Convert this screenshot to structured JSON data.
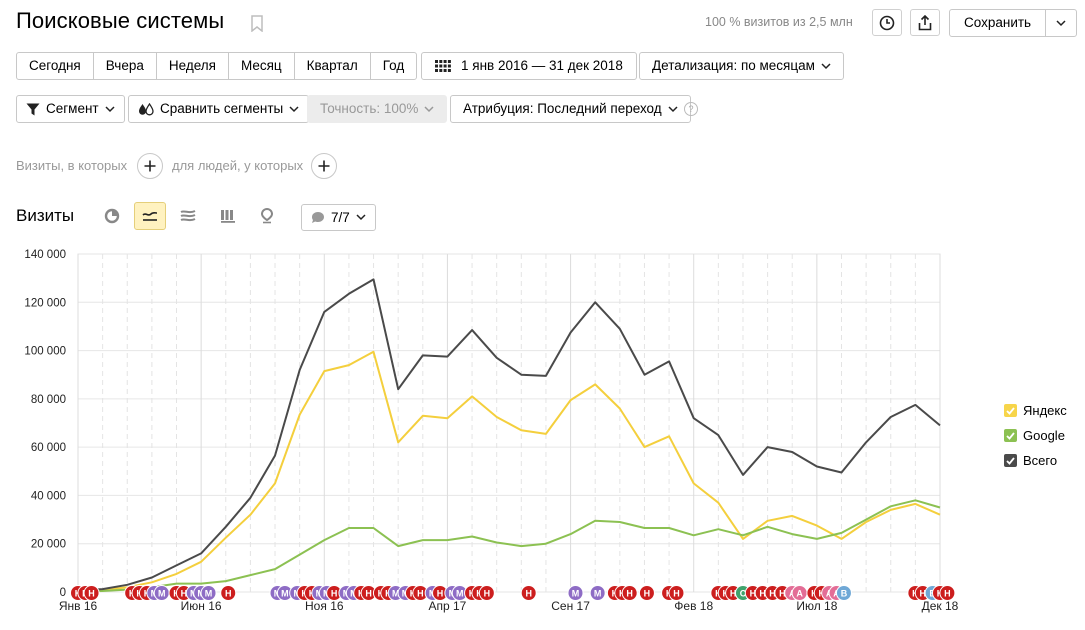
{
  "header": {
    "title": "Поисковые системы",
    "visits_share": "100 % визитов из 2,5 млн",
    "save_label": "Сохранить"
  },
  "period_buttons": [
    "Сегодня",
    "Вчера",
    "Неделя",
    "Месяц",
    "Квартал",
    "Год"
  ],
  "date_range": "1 янв 2016 — 31 дек 2018",
  "detail": "Детализация: по месяцам",
  "segment_label": "Сегмент",
  "compare_label": "Сравнить сегменты",
  "accuracy_label": "Точность: 100%",
  "attribution_label": "Атрибуция: Последний переход",
  "help_glyph": "?",
  "filter": {
    "visits_label": "Визиты, в которых",
    "people_label": "для людей, у которых"
  },
  "section": {
    "title": "Визиты",
    "annotations_count": "7/7"
  },
  "legend": [
    {
      "name": "Яндекс",
      "color": "#f7d54a"
    },
    {
      "name": "Google",
      "color": "#8cc152"
    },
    {
      "name": "Всего",
      "color": "#4a4a4a"
    }
  ],
  "chart_data": {
    "type": "line",
    "ylim": [
      0,
      140000
    ],
    "y_ticks": [
      {
        "value": 0,
        "label": "0"
      },
      {
        "value": 20000,
        "label": "20 000"
      },
      {
        "value": 40000,
        "label": "40 000"
      },
      {
        "value": 60000,
        "label": "60 000"
      },
      {
        "value": 80000,
        "label": "80 000"
      },
      {
        "value": 100000,
        "label": "100 000"
      },
      {
        "value": 120000,
        "label": "120 000"
      },
      {
        "value": 140000,
        "label": "140 000"
      }
    ],
    "x": [
      "2016-01",
      "2016-02",
      "2016-03",
      "2016-04",
      "2016-05",
      "2016-06",
      "2016-07",
      "2016-08",
      "2016-09",
      "2016-10",
      "2016-11",
      "2016-12",
      "2017-01",
      "2017-02",
      "2017-03",
      "2017-04",
      "2017-05",
      "2017-06",
      "2017-07",
      "2017-08",
      "2017-09",
      "2017-10",
      "2017-11",
      "2017-12",
      "2018-01",
      "2018-02",
      "2018-03",
      "2018-04",
      "2018-05",
      "2018-06",
      "2018-07",
      "2018-08",
      "2018-09",
      "2018-10",
      "2018-11",
      "2018-12"
    ],
    "x_labels": [
      {
        "index": 0,
        "label": "Янв 16"
      },
      {
        "index": 5,
        "label": "Июн 16"
      },
      {
        "index": 10,
        "label": "Ноя 16"
      },
      {
        "index": 15,
        "label": "Апр 17"
      },
      {
        "index": 20,
        "label": "Сен 17"
      },
      {
        "index": 25,
        "label": "Фев 18"
      },
      {
        "index": 30,
        "label": "Июл 18"
      },
      {
        "index": 35,
        "label": "Дек 18"
      }
    ],
    "series": [
      {
        "name": "Яндекс",
        "color": "#f4cf3d",
        "values": [
          500,
          800,
          2000,
          4000,
          7500,
          12500,
          22500,
          32000,
          45000,
          73500,
          91500,
          94000,
          99500,
          62000,
          73000,
          72000,
          81000,
          72500,
          67000,
          65500,
          79500,
          86000,
          76000,
          60000,
          64500,
          45000,
          37000,
          22000,
          29500,
          31500,
          27500,
          22000,
          29000,
          34000,
          36500,
          32000
        ]
      },
      {
        "name": "Google",
        "color": "#8cc152",
        "values": [
          200,
          400,
          1000,
          2000,
          3500,
          3500,
          4500,
          7000,
          9500,
          15500,
          21500,
          26500,
          26500,
          19000,
          21500,
          21500,
          23000,
          20500,
          19000,
          20000,
          24000,
          29500,
          29000,
          26500,
          26500,
          23500,
          26000,
          23500,
          27000,
          24000,
          22000,
          24500,
          30000,
          35500,
          38000,
          35000
        ]
      },
      {
        "name": "Всего",
        "color": "#4a4a4a",
        "values": [
          700,
          1200,
          3000,
          6000,
          11000,
          16000,
          27000,
          39000,
          56500,
          92000,
          116000,
          123500,
          129500,
          84000,
          98000,
          97500,
          108500,
          97000,
          90000,
          89500,
          107500,
          120000,
          109000,
          90000,
          95500,
          72000,
          65000,
          48500,
          60000,
          58000,
          52000,
          49500,
          62000,
          72500,
          77500,
          69000
        ]
      }
    ]
  },
  "annotations": [
    {
      "m": 0.0,
      "letter": "Н",
      "color": "#cc1e1e"
    },
    {
      "m": 0.3,
      "letter": "Н",
      "color": "#cc1e1e"
    },
    {
      "m": 0.55,
      "letter": "Н",
      "color": "#cc1e1e"
    },
    {
      "m": 2.2,
      "letter": "Н",
      "color": "#cc1e1e"
    },
    {
      "m": 2.5,
      "letter": "Н",
      "color": "#cc1e1e"
    },
    {
      "m": 2.8,
      "letter": "Н",
      "color": "#cc1e1e"
    },
    {
      "m": 3.1,
      "letter": "М",
      "color": "#8e6cc5"
    },
    {
      "m": 3.4,
      "letter": "М",
      "color": "#8e6cc5"
    },
    {
      "m": 4.0,
      "letter": "Н",
      "color": "#cc1e1e"
    },
    {
      "m": 4.3,
      "letter": "Н",
      "color": "#cc1e1e"
    },
    {
      "m": 4.7,
      "letter": "М",
      "color": "#8e6cc5"
    },
    {
      "m": 5.0,
      "letter": "М",
      "color": "#8e6cc5"
    },
    {
      "m": 5.3,
      "letter": "М",
      "color": "#8e6cc5"
    },
    {
      "m": 6.1,
      "letter": "Н",
      "color": "#cc1e1e"
    },
    {
      "m": 8.1,
      "letter": "М",
      "color": "#8e6cc5"
    },
    {
      "m": 8.4,
      "letter": "М",
      "color": "#8e6cc5"
    },
    {
      "m": 8.9,
      "letter": "М",
      "color": "#8e6cc5"
    },
    {
      "m": 9.2,
      "letter": "Н",
      "color": "#cc1e1e"
    },
    {
      "m": 9.5,
      "letter": "Н",
      "color": "#cc1e1e"
    },
    {
      "m": 9.8,
      "letter": "М",
      "color": "#8e6cc5"
    },
    {
      "m": 10.1,
      "letter": "М",
      "color": "#8e6cc5"
    },
    {
      "m": 10.4,
      "letter": "Н",
      "color": "#cc1e1e"
    },
    {
      "m": 10.9,
      "letter": "М",
      "color": "#8e6cc5"
    },
    {
      "m": 11.2,
      "letter": "М",
      "color": "#8e6cc5"
    },
    {
      "m": 11.5,
      "letter": "Н",
      "color": "#cc1e1e"
    },
    {
      "m": 11.8,
      "letter": "Н",
      "color": "#cc1e1e"
    },
    {
      "m": 12.3,
      "letter": "Н",
      "color": "#cc1e1e"
    },
    {
      "m": 12.6,
      "letter": "Н",
      "color": "#cc1e1e"
    },
    {
      "m": 12.9,
      "letter": "М",
      "color": "#8e6cc5"
    },
    {
      "m": 13.3,
      "letter": "М",
      "color": "#8e6cc5"
    },
    {
      "m": 13.6,
      "letter": "Н",
      "color": "#cc1e1e"
    },
    {
      "m": 13.9,
      "letter": "Н",
      "color": "#cc1e1e"
    },
    {
      "m": 14.4,
      "letter": "М",
      "color": "#8e6cc5"
    },
    {
      "m": 14.7,
      "letter": "Н",
      "color": "#cc1e1e"
    },
    {
      "m": 15.2,
      "letter": "М",
      "color": "#8e6cc5"
    },
    {
      "m": 15.5,
      "letter": "М",
      "color": "#8e6cc5"
    },
    {
      "m": 16.0,
      "letter": "Н",
      "color": "#cc1e1e"
    },
    {
      "m": 16.3,
      "letter": "Н",
      "color": "#cc1e1e"
    },
    {
      "m": 16.6,
      "letter": "Н",
      "color": "#cc1e1e"
    },
    {
      "m": 18.3,
      "letter": "Н",
      "color": "#cc1e1e"
    },
    {
      "m": 20.2,
      "letter": "М",
      "color": "#8e6cc5"
    },
    {
      "m": 21.1,
      "letter": "М",
      "color": "#8e6cc5"
    },
    {
      "m": 21.8,
      "letter": "Н",
      "color": "#cc1e1e"
    },
    {
      "m": 22.1,
      "letter": "Н",
      "color": "#cc1e1e"
    },
    {
      "m": 22.4,
      "letter": "Н",
      "color": "#cc1e1e"
    },
    {
      "m": 23.1,
      "letter": "Н",
      "color": "#cc1e1e"
    },
    {
      "m": 24.0,
      "letter": "Н",
      "color": "#cc1e1e"
    },
    {
      "m": 24.3,
      "letter": "Н",
      "color": "#cc1e1e"
    },
    {
      "m": 26.0,
      "letter": "Н",
      "color": "#cc1e1e"
    },
    {
      "m": 26.3,
      "letter": "Н",
      "color": "#cc1e1e"
    },
    {
      "m": 26.6,
      "letter": "Н",
      "color": "#cc1e1e"
    },
    {
      "m": 27.0,
      "letter": "С",
      "color": "#3fa36d"
    },
    {
      "m": 27.4,
      "letter": "Н",
      "color": "#cc1e1e"
    },
    {
      "m": 27.8,
      "letter": "Н",
      "color": "#cc1e1e"
    },
    {
      "m": 28.2,
      "letter": "Н",
      "color": "#cc1e1e"
    },
    {
      "m": 28.6,
      "letter": "Н",
      "color": "#cc1e1e"
    },
    {
      "m": 29.0,
      "letter": "А",
      "color": "#e36d96"
    },
    {
      "m": 29.3,
      "letter": "А",
      "color": "#e36d96"
    },
    {
      "m": 29.9,
      "letter": "Н",
      "color": "#cc1e1e"
    },
    {
      "m": 30.2,
      "letter": "Н",
      "color": "#cc1e1e"
    },
    {
      "m": 30.5,
      "letter": "А",
      "color": "#e36d96"
    },
    {
      "m": 30.8,
      "letter": "А",
      "color": "#e36d96"
    },
    {
      "m": 31.1,
      "letter": "В",
      "color": "#6fa8d6"
    },
    {
      "m": 34.0,
      "letter": "Н",
      "color": "#cc1e1e"
    },
    {
      "m": 34.3,
      "letter": "Н",
      "color": "#cc1e1e"
    },
    {
      "m": 34.7,
      "letter": "В",
      "color": "#6fa8d6"
    },
    {
      "m": 35.0,
      "letter": "Н",
      "color": "#cc1e1e"
    },
    {
      "m": 35.3,
      "letter": "Н",
      "color": "#cc1e1e"
    }
  ]
}
